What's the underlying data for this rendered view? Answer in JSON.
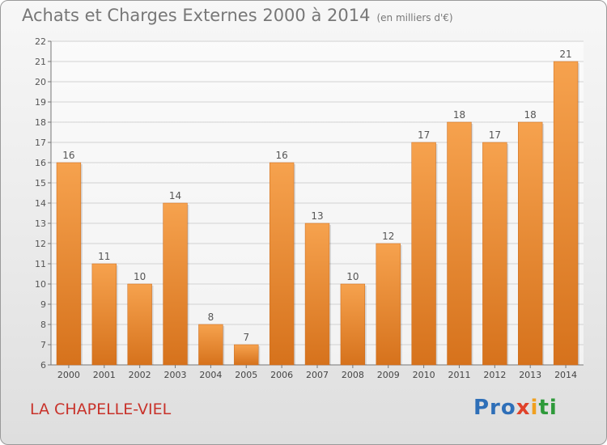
{
  "chart_data": {
    "type": "bar",
    "title": "Achats et Charges Externes 2000 à 2014",
    "subtitle": "(en milliers d'€)",
    "categories": [
      "2000",
      "2001",
      "2002",
      "2003",
      "2004",
      "2005",
      "2006",
      "2007",
      "2008",
      "2009",
      "2010",
      "2011",
      "2012",
      "2013",
      "2014"
    ],
    "values": [
      16,
      11,
      10,
      14,
      8,
      7,
      16,
      13,
      10,
      12,
      17,
      18,
      17,
      18,
      21
    ],
    "ylim": [
      6,
      22
    ],
    "yticks": [
      6,
      7,
      8,
      9,
      10,
      11,
      12,
      13,
      14,
      15,
      16,
      17,
      18,
      19,
      20,
      21,
      22
    ],
    "grid": true,
    "bar_color": "#f29a3e"
  },
  "footer": {
    "town": "LA CHAPELLE-VIEL",
    "logo_parts": [
      "Pro",
      "x",
      "i",
      "ti"
    ]
  }
}
